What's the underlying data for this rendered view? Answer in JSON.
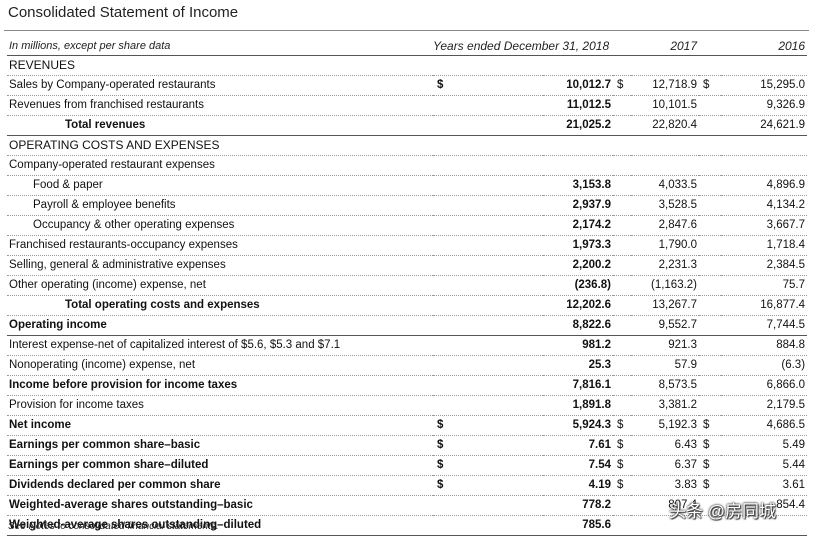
{
  "title": "Consolidated Statement of Income",
  "header": {
    "unit_note": "In millions, except per share data",
    "col_2018": "Years ended December 31, 2018",
    "col_2017": "2017",
    "col_2016": "2016"
  },
  "rows": [
    {
      "label": "REVENUES",
      "style": "section"
    },
    {
      "label": "Sales by Company-operated restaurants",
      "s18": "$",
      "v18": "10,012.7",
      "s17": "$",
      "v17": "12,718.9",
      "s16": "$",
      "v16": "15,295.0"
    },
    {
      "label": "Revenues from franchised restaurants",
      "v18": "11,012.5",
      "v17": "10,101.5",
      "v16": "9,326.9"
    },
    {
      "label": "Total revenues",
      "style": "total",
      "v18": "21,025.2",
      "v17": "22,820.4",
      "v16": "24,621.9"
    },
    {
      "label": "OPERATING COSTS AND EXPENSES",
      "style": "section"
    },
    {
      "label": "Company-operated restaurant expenses"
    },
    {
      "label": "Food & paper",
      "style": "indent",
      "v18": "3,153.8",
      "v17": "4,033.5",
      "v16": "4,896.9"
    },
    {
      "label": "Payroll & employee benefits",
      "style": "indent",
      "v18": "2,937.9",
      "v17": "3,528.5",
      "v16": "4,134.2"
    },
    {
      "label": "Occupancy & other operating expenses",
      "style": "indent",
      "v18": "2,174.2",
      "v17": "2,847.6",
      "v16": "3,667.7"
    },
    {
      "label": "Franchised restaurants-occupancy expenses",
      "v18": "1,973.3",
      "v17": "1,790.0",
      "v16": "1,718.4"
    },
    {
      "label": "Selling, general & administrative expenses",
      "v18": "2,200.2",
      "v17": "2,231.3",
      "v16": "2,384.5"
    },
    {
      "label": "Other operating (income) expense, net",
      "v18": "(236.8)",
      "v17": "(1,163.2)",
      "v16": "75.7"
    },
    {
      "label": "Total operating costs and expenses",
      "style": "total",
      "v18": "12,202.6",
      "v17": "13,267.7",
      "v16": "16,877.4"
    },
    {
      "label": "Operating income",
      "style": "bold",
      "v18": "8,822.6",
      "v17": "9,552.7",
      "v16": "7,744.5"
    },
    {
      "label": "Interest expense-net of capitalized interest of $5.6, $5.3 and $7.1",
      "v18": "981.2",
      "v17": "921.3",
      "v16": "884.8"
    },
    {
      "label": "Nonoperating (income) expense, net",
      "v18": "25.3",
      "v17": "57.9",
      "v16": "(6.3)"
    },
    {
      "label": "Income before provision for income taxes",
      "style": "bold",
      "v18": "7,816.1",
      "v17": "8,573.5",
      "v16": "6,866.0"
    },
    {
      "label": "Provision for income taxes",
      "v18": "1,891.8",
      "v17": "3,381.2",
      "v16": "2,179.5"
    },
    {
      "label": "Net income",
      "style": "bold",
      "s18": "$",
      "v18": "5,924.3",
      "s17": "$",
      "v17": "5,192.3",
      "s16": "$",
      "v16": "4,686.5"
    },
    {
      "label": "Earnings per common share–basic",
      "style": "bold",
      "s18": "$",
      "v18": "7.61",
      "s17": "$",
      "v17": "6.43",
      "s16": "$",
      "v16": "5.49"
    },
    {
      "label": "Earnings per common share–diluted",
      "style": "bold",
      "s18": "$",
      "v18": "7.54",
      "s17": "$",
      "v17": "6.37",
      "s16": "$",
      "v16": "5.44"
    },
    {
      "label": "Dividends declared per common share",
      "style": "bold",
      "s18": "$",
      "v18": "4.19",
      "s17": "$",
      "v17": "3.83",
      "s16": "$",
      "v16": "3.61"
    },
    {
      "label": "Weighted-average shares outstanding–basic",
      "style": "bold",
      "v18": "778.2",
      "v17": "807.4",
      "v16": "854.4"
    },
    {
      "label": "Weighted-average shares outstanding–diluted",
      "style": "bold",
      "v18": "785.6",
      "v17": "",
      "v16": ""
    }
  ],
  "footnote": "See Notes to consolidated financial statements.",
  "watermark": "头条 @房同城"
}
